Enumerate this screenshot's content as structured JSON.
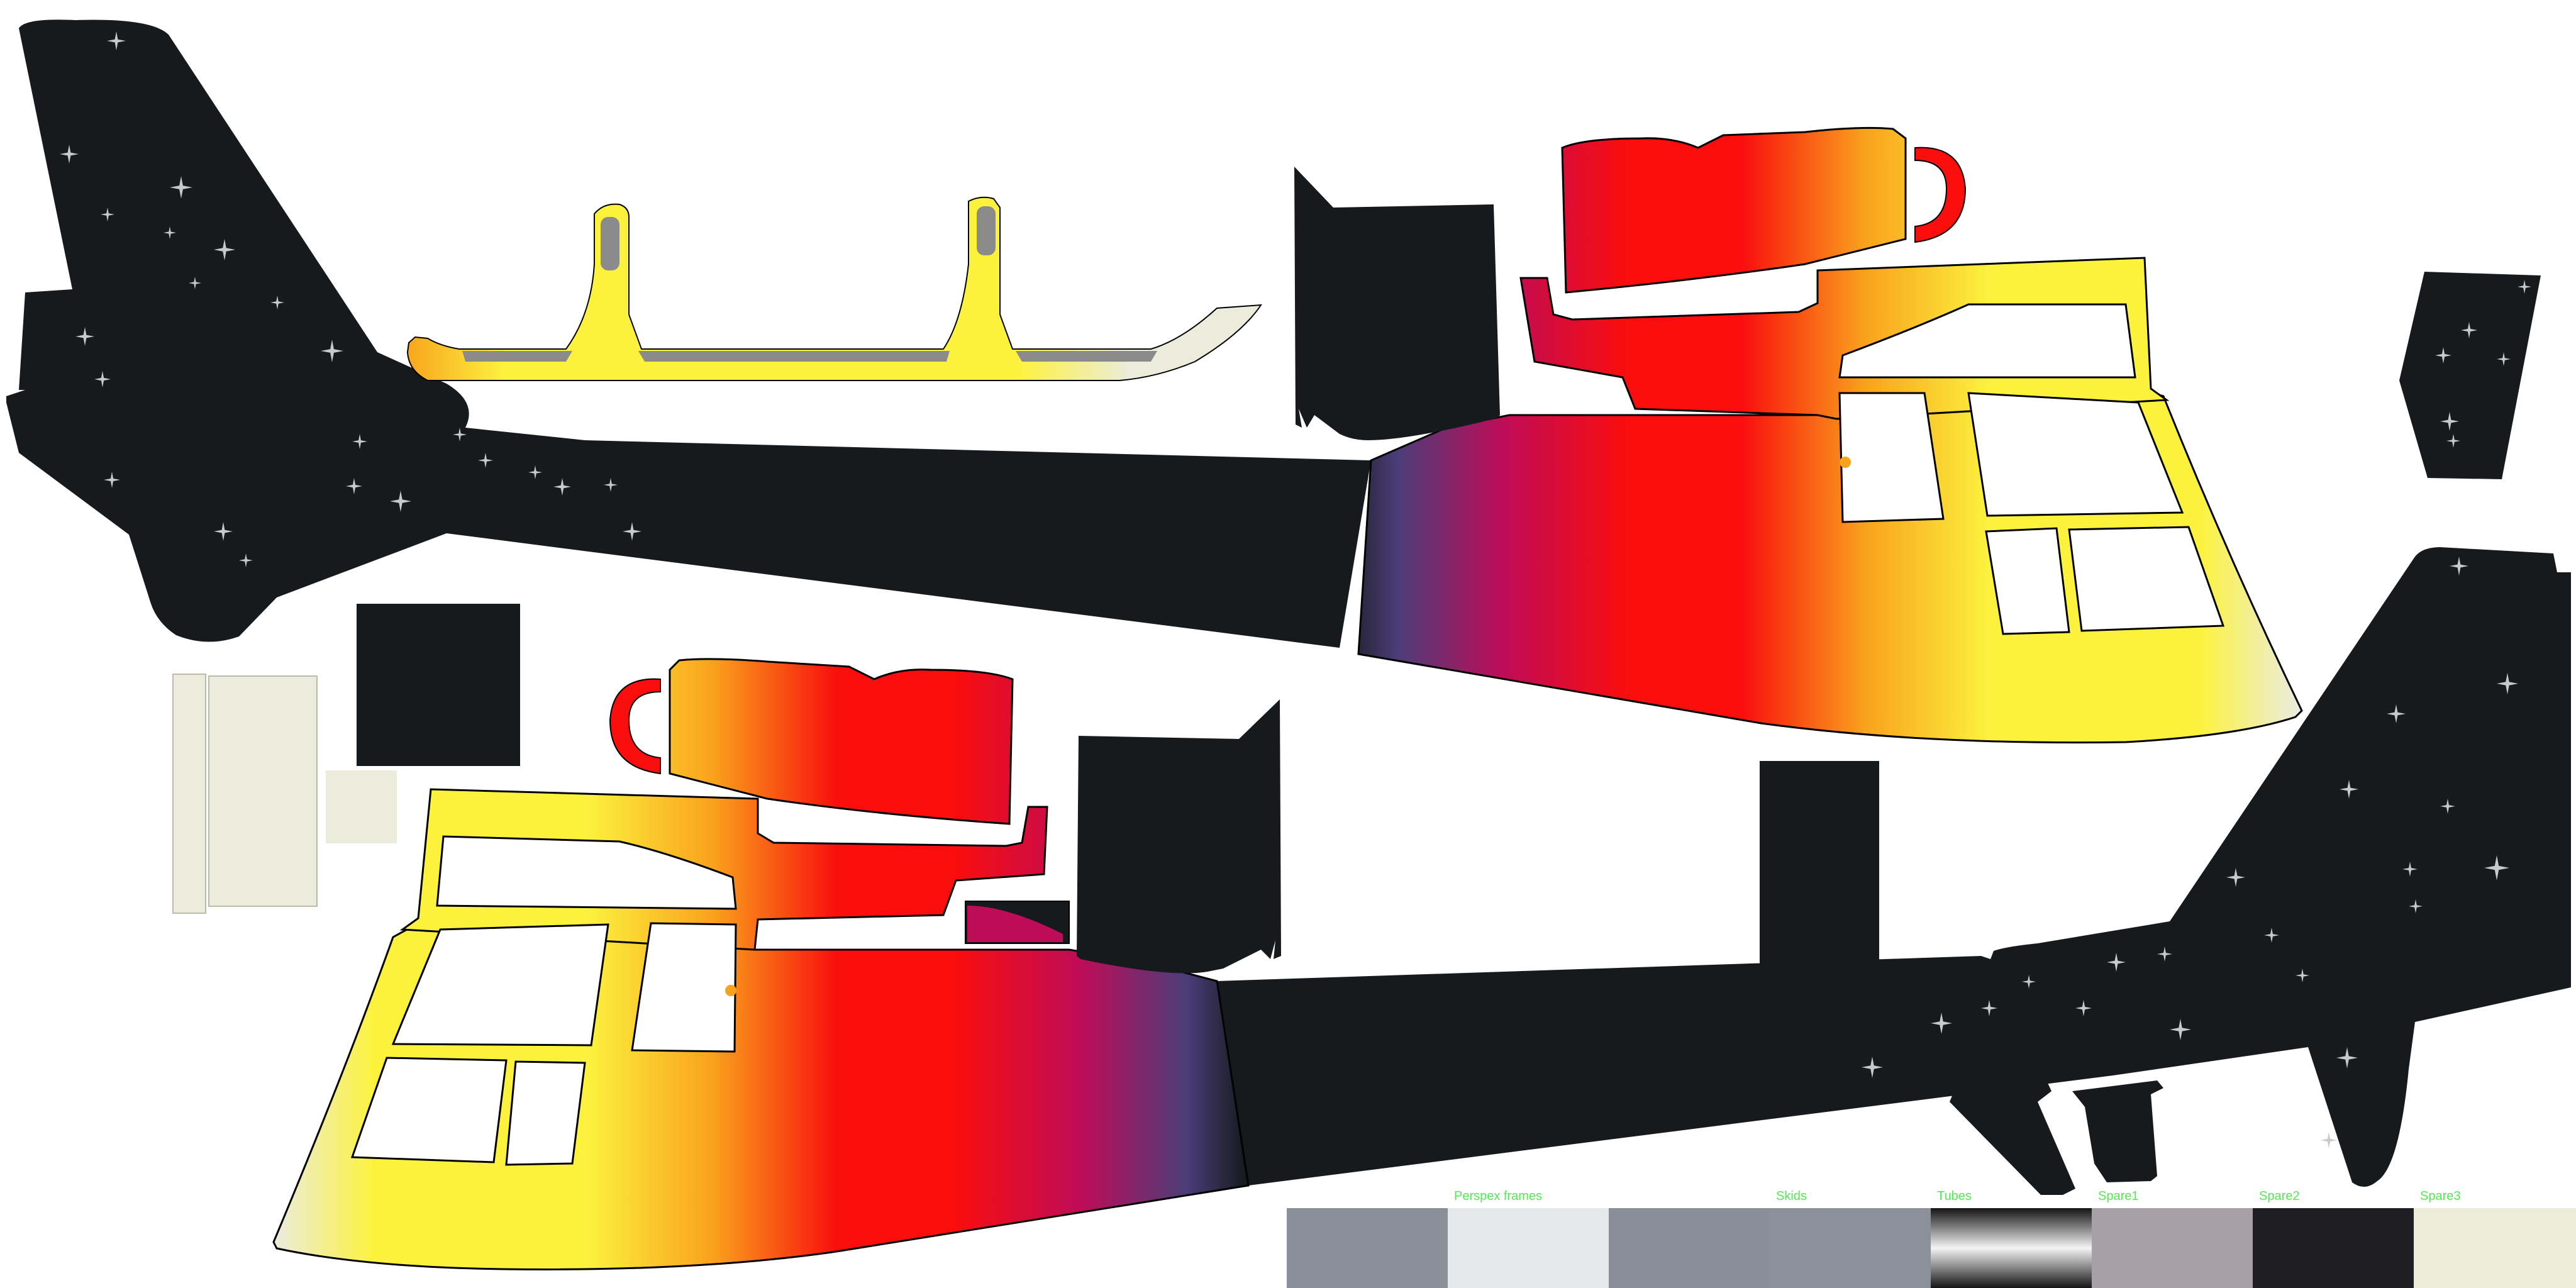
{
  "texture": {
    "palette": {
      "dark": "#171a1d",
      "sparkle": "#c8c8d0",
      "cream": "#ebecdb",
      "yellow": "#fcf23e",
      "orange": "#f9a21c",
      "red": "#f90d0d",
      "magenta": "#be0c58",
      "purple": "#4a3d79",
      "label_green": "#55e855"
    },
    "swatches": [
      {
        "label": "",
        "color": "#8a8f9a"
      },
      {
        "label": "Perspex frames",
        "color": "#e6e7e9"
      },
      {
        "label": "",
        "color": "#898e98"
      },
      {
        "label": "Skids",
        "color": "#8b909a"
      },
      {
        "label": "Tubes",
        "color": "gradient"
      },
      {
        "label": "Spare1",
        "color": "#a8a0a6"
      },
      {
        "label": "Spare2",
        "color": "#1f1f23"
      },
      {
        "label": "Spare3",
        "color": "#ebedda"
      }
    ]
  }
}
